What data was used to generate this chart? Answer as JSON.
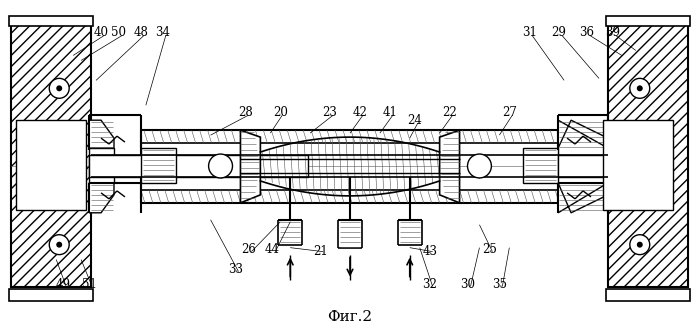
{
  "title": "Фиг.2",
  "title_fontsize": 11,
  "bg": "#ffffff",
  "black": "#000000",
  "fig_w": 6.99,
  "fig_h": 3.31,
  "dpi": 100
}
